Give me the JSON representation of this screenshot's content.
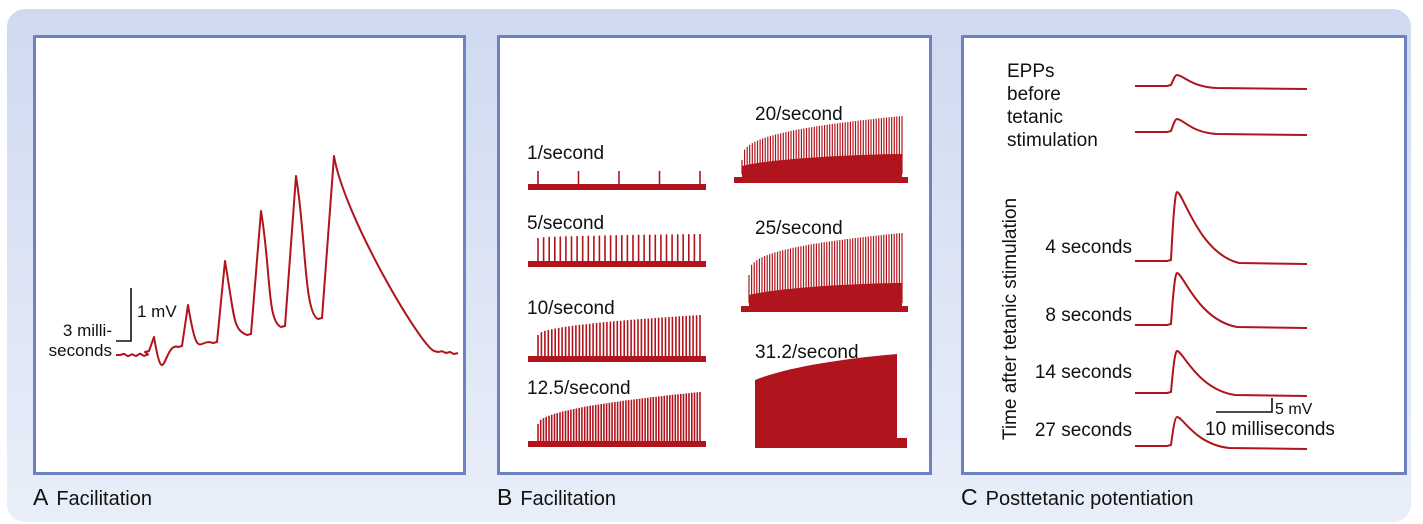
{
  "colors": {
    "trace": "#b0141c",
    "panel_border": "#6f80c4",
    "background_top": "#cfdaf0",
    "background_bottom": "#e9eff9"
  },
  "panel_a": {
    "letter": "A",
    "caption": "Facilitation",
    "scale_time_1": "3 milli-",
    "scale_time_2": "seconds",
    "scale_voltage": "1 mV"
  },
  "panel_b": {
    "letter": "B",
    "caption": "Facilitation",
    "traces": [
      {
        "label": "1/second"
      },
      {
        "label": "5/second"
      },
      {
        "label": "10/second"
      },
      {
        "label": "12.5/second"
      },
      {
        "label": "20/second"
      },
      {
        "label": "25/second"
      },
      {
        "label": "31.2/second"
      }
    ]
  },
  "panel_c": {
    "letter": "C",
    "caption": "Posttetanic potentiation",
    "before_lines": [
      "EPPs",
      "before",
      "tetanic",
      "stimulation"
    ],
    "axis_label": "Time after tetanic stimulation",
    "traces": [
      {
        "label": "4 seconds"
      },
      {
        "label": "8 seconds"
      },
      {
        "label": "14 seconds"
      },
      {
        "label": "27 seconds"
      }
    ],
    "scale_voltage": "5 mV",
    "scale_time": "10 milliseconds"
  }
}
